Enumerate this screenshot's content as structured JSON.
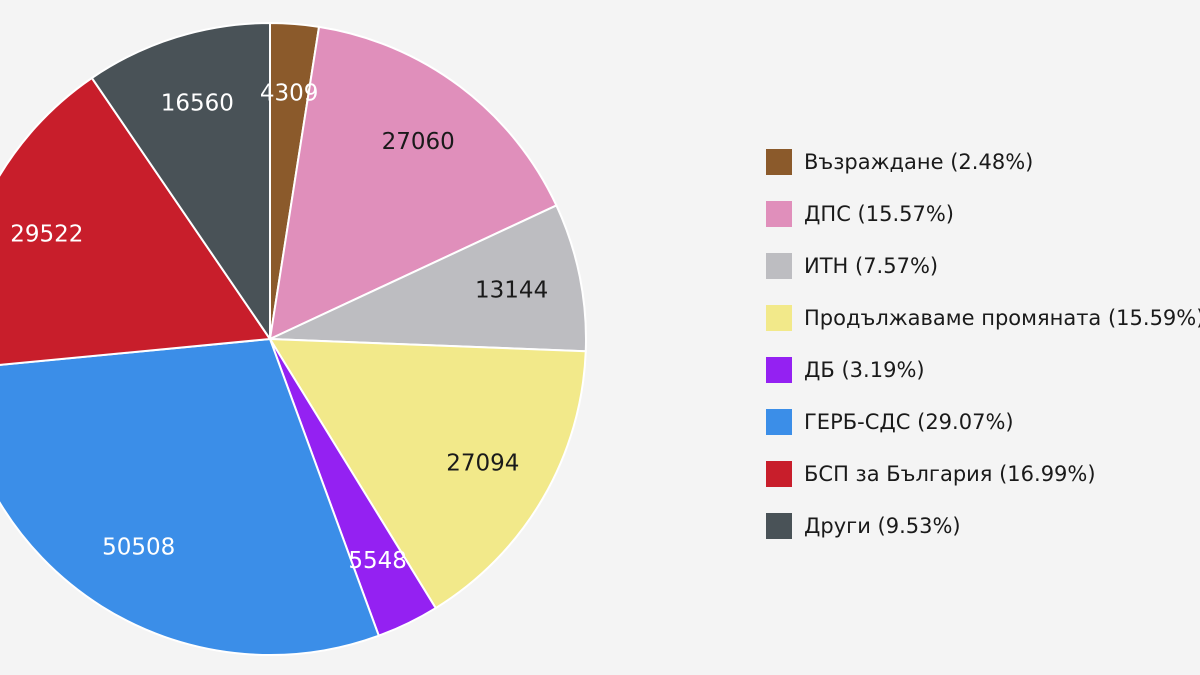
{
  "chart_data": {
    "type": "pie",
    "start_angle_deg": 0,
    "direction": "clockwise",
    "legend_position": "right",
    "slices": [
      {
        "label": "Възраждане (2.48%)",
        "value": 4309,
        "value_label": "4309",
        "color": "#8b5a2b",
        "text_color": "#ffffff"
      },
      {
        "label": "ДПС (15.57%)",
        "value": 27060,
        "value_label": "27060",
        "color": "#e08fbb",
        "text_color": "#1a1a1a"
      },
      {
        "label": "ИТН (7.57%)",
        "value": 13144,
        "value_label": "13144",
        "color": "#bdbdc1",
        "text_color": "#1a1a1a"
      },
      {
        "label": "Продължаваме промяната (15.59%)",
        "value": 27094,
        "value_label": "27094",
        "color": "#f2e98a",
        "text_color": "#1a1a1a"
      },
      {
        "label": "ДБ (3.19%)",
        "value": 5548,
        "value_label": "5548",
        "color": "#9421f2",
        "text_color": "#ffffff"
      },
      {
        "label": "ГЕРБ-СДС (29.07%)",
        "value": 50508,
        "value_label": "50508",
        "color": "#3b8ee8",
        "text_color": "#ffffff"
      },
      {
        "label": "БСП за България (16.99%)",
        "value": 29522,
        "value_label": "29522",
        "color": "#c81e2b",
        "text_color": "#ffffff"
      },
      {
        "label": "Други (9.53%)",
        "value": 16560,
        "value_label": "16560",
        "color": "#495257",
        "text_color": "#ffffff"
      }
    ]
  }
}
